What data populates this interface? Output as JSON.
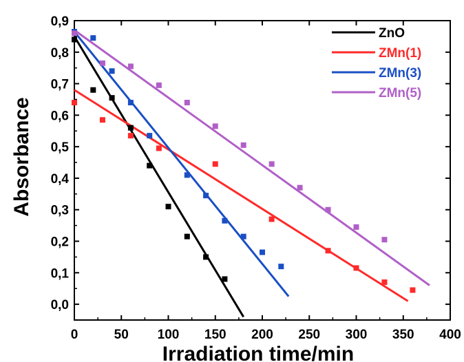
{
  "chart_data": {
    "type": "scatter",
    "xlabel": "Irradiation time/min",
    "ylabel": "Absorbance",
    "xlim": [
      0,
      400
    ],
    "ylim": [
      -0.05,
      0.9
    ],
    "x_ticks": [
      0,
      50,
      100,
      150,
      200,
      250,
      300,
      350,
      400
    ],
    "y_ticks": [
      0.0,
      0.1,
      0.2,
      0.3,
      0.4,
      0.5,
      0.6,
      0.7,
      0.8,
      0.9
    ],
    "x_tick_labels": [
      "0",
      "50",
      "100",
      "150",
      "200",
      "250",
      "300",
      "350",
      "400"
    ],
    "y_tick_labels": [
      "0,0",
      "0,1",
      "0,2",
      "0,3",
      "0,4",
      "0,5",
      "0,6",
      "0,7",
      "0,8",
      "0,9"
    ],
    "grid": false,
    "legend_position": "top-right",
    "series": [
      {
        "name": "ZnO",
        "color": "#000000",
        "points": [
          [
            0,
            0.84
          ],
          [
            20,
            0.68
          ],
          [
            40,
            0.655
          ],
          [
            60,
            0.56
          ],
          [
            80,
            0.44
          ],
          [
            100,
            0.31
          ],
          [
            120,
            0.215
          ],
          [
            140,
            0.15
          ],
          [
            160,
            0.08
          ]
        ],
        "fit": [
          [
            0,
            0.85
          ],
          [
            180,
            -0.04
          ]
        ]
      },
      {
        "name": "ZMn(1)",
        "color": "#ff2a2a",
        "points": [
          [
            0,
            0.64
          ],
          [
            30,
            0.585
          ],
          [
            60,
            0.535
          ],
          [
            90,
            0.495
          ],
          [
            150,
            0.445
          ],
          [
            210,
            0.27
          ],
          [
            270,
            0.17
          ],
          [
            300,
            0.115
          ],
          [
            330,
            0.07
          ],
          [
            360,
            0.045
          ]
        ],
        "fit": [
          [
            0,
            0.68
          ],
          [
            355,
            0.01
          ]
        ]
      },
      {
        "name": "ZMn(3)",
        "color": "#1a4fc4",
        "points": [
          [
            0,
            0.865
          ],
          [
            20,
            0.845
          ],
          [
            40,
            0.74
          ],
          [
            60,
            0.64
          ],
          [
            80,
            0.535
          ],
          [
            120,
            0.41
          ],
          [
            140,
            0.345
          ],
          [
            160,
            0.265
          ],
          [
            180,
            0.215
          ],
          [
            200,
            0.165
          ],
          [
            220,
            0.12
          ]
        ],
        "fit": [
          [
            0,
            0.865
          ],
          [
            228,
            0.025
          ]
        ]
      },
      {
        "name": "ZMn(5)",
        "color": "#b15fc8",
        "points": [
          [
            0,
            0.86
          ],
          [
            30,
            0.765
          ],
          [
            60,
            0.755
          ],
          [
            90,
            0.695
          ],
          [
            120,
            0.64
          ],
          [
            150,
            0.565
          ],
          [
            180,
            0.505
          ],
          [
            210,
            0.445
          ],
          [
            240,
            0.37
          ],
          [
            270,
            0.3
          ],
          [
            300,
            0.245
          ],
          [
            330,
            0.205
          ]
        ],
        "fit": [
          [
            0,
            0.87
          ],
          [
            378,
            0.06
          ]
        ]
      }
    ]
  }
}
